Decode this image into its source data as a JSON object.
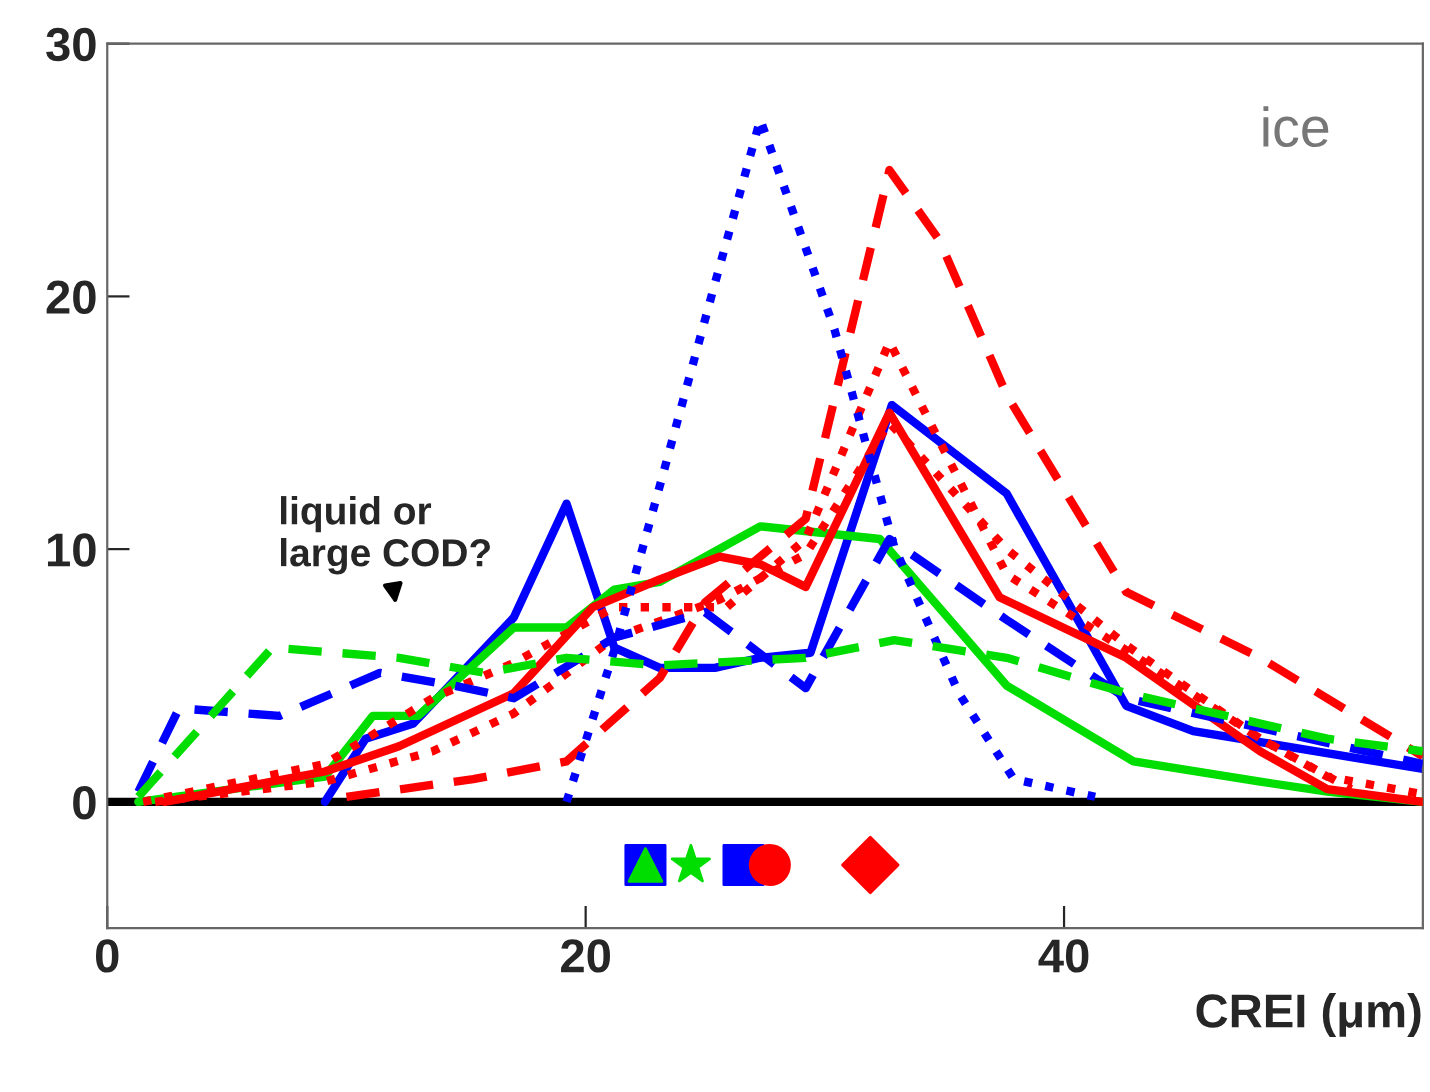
{
  "chart_data": {
    "type": "line",
    "xlabel": "CREI (μm)",
    "xlim": [
      0,
      55
    ],
    "ylim": [
      -5,
      30
    ],
    "xticks": [
      0,
      20,
      40
    ],
    "yticks": [
      0,
      10,
      20,
      30
    ],
    "grid": false,
    "legend": false,
    "annotations": [
      "ice",
      "liquid or\nlarge COD?"
    ],
    "ref_lines": [
      {
        "axis": "y",
        "value": 0,
        "color": "#000000"
      }
    ],
    "series": [
      {
        "color": "#0000ff",
        "line_style": "solid",
        "x": [
          9.1,
          10.8,
          12.8,
          17.0,
          19.2,
          21.2,
          23.1,
          25.4,
          27.3,
          29.4,
          32.8,
          37.6,
          42.6,
          45.4,
          55
        ],
        "values": [
          0,
          2.5,
          3.1,
          7.3,
          11.8,
          6.1,
          5.3,
          5.3,
          5.7,
          5.9,
          15.7,
          12.2,
          3.8,
          2.8,
          1.3
        ]
      },
      {
        "color": "#00dd00",
        "line_style": "solid",
        "x": [
          1.3,
          9.1,
          11.1,
          13,
          17,
          19.2,
          21.2,
          23.1,
          27.3,
          32.3,
          37.6,
          42.9,
          48.2,
          51,
          55
        ],
        "values": [
          0,
          1.0,
          3.4,
          3.4,
          6.9,
          6.9,
          8.4,
          8.7,
          10.9,
          10.4,
          4.6,
          1.6,
          0.8,
          0.4,
          0
        ]
      },
      {
        "color": "#ff0000",
        "line_style": "solid",
        "x": [
          2.4,
          9.1,
          12.2,
          17,
          20.3,
          23.1,
          25.6,
          27.3,
          29.2,
          32.7,
          37.3,
          42.6,
          48.2,
          51,
          55
        ],
        "values": [
          0,
          1.2,
          2.2,
          4.3,
          7.7,
          8.8,
          9.7,
          9.4,
          8.5,
          15.4,
          8.1,
          5.7,
          2.0,
          0.5,
          0
        ]
      },
      {
        "color": "#ff0000",
        "line_style": "dashed",
        "x": [
          10,
          15.3,
          19.2,
          23.1,
          25,
          29.2,
          32.7,
          34.8,
          37.6,
          42.6,
          48.2,
          55
        ],
        "values": [
          0.2,
          0.9,
          1.6,
          4.9,
          7.9,
          11.2,
          25,
          22.2,
          16.1,
          8.3,
          5.7,
          1.8
        ]
      },
      {
        "color": "#ff0000",
        "line_style": "dotted",
        "x": [
          1.5,
          9.1,
          13.6,
          17,
          21.2,
          25.9,
          29.2,
          32.7,
          37.6,
          42.6,
          48.2,
          51,
          55
        ],
        "values": [
          0,
          1.5,
          4.1,
          5.5,
          7.7,
          7.7,
          10.4,
          18.2,
          9,
          6,
          2.5,
          1,
          0.3
        ]
      },
      {
        "color": "#ff0000",
        "line_style": "dotted",
        "x": [
          2,
          9.1,
          13.6,
          17,
          21.2,
          25.6,
          29.2,
          32.7,
          37.6,
          42.6,
          48.2,
          52
        ],
        "values": [
          0,
          0.8,
          2,
          3.5,
          6.5,
          8,
          9.8,
          15,
          10,
          6.2,
          2.5,
          0.5
        ]
      },
      {
        "color": "#0000ff",
        "line_style": "dashed",
        "x": [
          1.3,
          3,
          7.2,
          11.4,
          14.5,
          17,
          21.2,
          25,
          29.2,
          32.7,
          37.6,
          42.6,
          55
        ],
        "values": [
          0.4,
          3.7,
          3.4,
          5.1,
          4.6,
          4.1,
          6.5,
          7.5,
          4.5,
          10.4,
          7.2,
          4.1,
          1.5
        ]
      },
      {
        "color": "#0000ff",
        "line_style": "dotted",
        "x": [
          19.2,
          21.2,
          23.1,
          25.4,
          27.3,
          30.4,
          32.9,
          35.6,
          37.9,
          41.3
        ],
        "values": [
          0,
          6,
          12.5,
          20.5,
          27,
          18.7,
          10.1,
          4.3,
          0.9,
          0.2
        ]
      },
      {
        "color": "#00dd00",
        "line_style": "dashed",
        "x": [
          1.3,
          6.9,
          12.2,
          15.8,
          19.2,
          23.1,
          29.2,
          32.9,
          37.6,
          42.6,
          51,
          55
        ],
        "values": [
          0.2,
          6.1,
          5.7,
          5.1,
          5.7,
          5.4,
          5.7,
          6.4,
          5.7,
          4.3,
          2.5,
          2.0
        ]
      },
      {
        "type": "scatter",
        "marker": "square",
        "color": "#0000ff",
        "x": [
          22.5
        ],
        "values": [
          -2.5
        ]
      },
      {
        "type": "scatter",
        "marker": "triangle",
        "color": "#00dd00",
        "x": [
          22.5
        ],
        "values": [
          -2.5
        ]
      },
      {
        "type": "scatter",
        "marker": "star",
        "color": "#00dd00",
        "x": [
          24.4
        ],
        "values": [
          -2.5
        ]
      },
      {
        "type": "scatter",
        "marker": "square",
        "color": "#0000ff",
        "x": [
          26.6
        ],
        "values": [
          -2.5
        ]
      },
      {
        "type": "scatter",
        "marker": "circle",
        "color": "#ff0000",
        "x": [
          27.7
        ],
        "values": [
          -2.5
        ]
      },
      {
        "type": "scatter",
        "marker": "diamond",
        "color": "#ff0000",
        "x": [
          31.9
        ],
        "values": [
          -2.5
        ]
      }
    ]
  }
}
